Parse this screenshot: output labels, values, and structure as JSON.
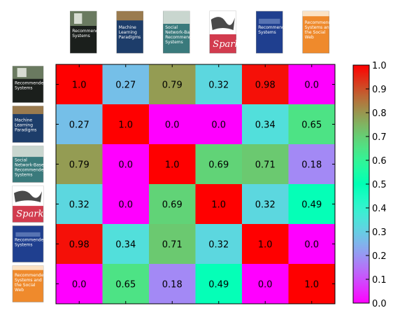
{
  "chart_data": {
    "type": "heatmap",
    "title": "",
    "xlabel": "",
    "ylabel": "",
    "books": [
      {
        "cover_title": "Recommender Systems",
        "style": "dark-photo",
        "color": "#1b1f1c",
        "accent": "#6a7a60"
      },
      {
        "cover_title": "Machine Learning Paradigms",
        "style": "title-dark",
        "color": "#1d3d6a",
        "accent": "#e9eef5"
      },
      {
        "cover_title": "Social Network-Based Recommender Systems",
        "style": "teal",
        "color": "#3a7a7c",
        "accent": "#c9d6cf"
      },
      {
        "cover_title": "Spark",
        "style": "spark",
        "color": "#d23b4e",
        "accent": "#4a4a4a"
      },
      {
        "cover_title": "Recommender Systems",
        "style": "blue",
        "color": "#1f3f8f",
        "accent": "#8fa8d8"
      },
      {
        "cover_title": "Recommender Systems and the Social Web",
        "style": "orange",
        "color": "#ef8a2c",
        "accent": "#fbe2c4"
      }
    ],
    "matrix": [
      [
        1.0,
        0.27,
        0.79,
        0.32,
        0.98,
        0.0
      ],
      [
        0.27,
        1.0,
        0.0,
        0.0,
        0.34,
        0.65
      ],
      [
        0.79,
        0.0,
        1.0,
        0.69,
        0.71,
        0.18
      ],
      [
        0.32,
        0.0,
        0.69,
        1.0,
        0.32,
        0.49
      ],
      [
        0.98,
        0.34,
        0.71,
        0.32,
        1.0,
        0.0
      ],
      [
        0.0,
        0.65,
        0.18,
        0.49,
        0.0,
        1.0
      ]
    ],
    "cell_labels": [
      [
        "1.0",
        "0.27",
        "0.79",
        "0.32",
        "0.98",
        "0.0"
      ],
      [
        "0.27",
        "1.0",
        "0.0",
        "0.0",
        "0.34",
        "0.65"
      ],
      [
        "0.79",
        "0.0",
        "1.0",
        "0.69",
        "0.71",
        "0.18"
      ],
      [
        "0.32",
        "0.0",
        "0.69",
        "1.0",
        "0.32",
        "0.49"
      ],
      [
        "0.98",
        "0.34",
        "0.71",
        "0.32",
        "1.0",
        "0.0"
      ],
      [
        "0.0",
        "0.65",
        "0.18",
        "0.49",
        "0.0",
        "1.0"
      ]
    ],
    "colormap": "rainbow",
    "vmin": 0.0,
    "vmax": 1.0,
    "colorbar": {
      "ticks": [
        0.0,
        0.1,
        0.2,
        0.3,
        0.4,
        0.5,
        0.6,
        0.7,
        0.8,
        0.9,
        1.0
      ],
      "tick_labels": [
        "0.0",
        "0.1",
        "0.2",
        "0.3",
        "0.4",
        "0.5",
        "0.6",
        "0.7",
        "0.8",
        "0.9",
        "1.0"
      ],
      "placement": "right"
    },
    "grid": false
  }
}
